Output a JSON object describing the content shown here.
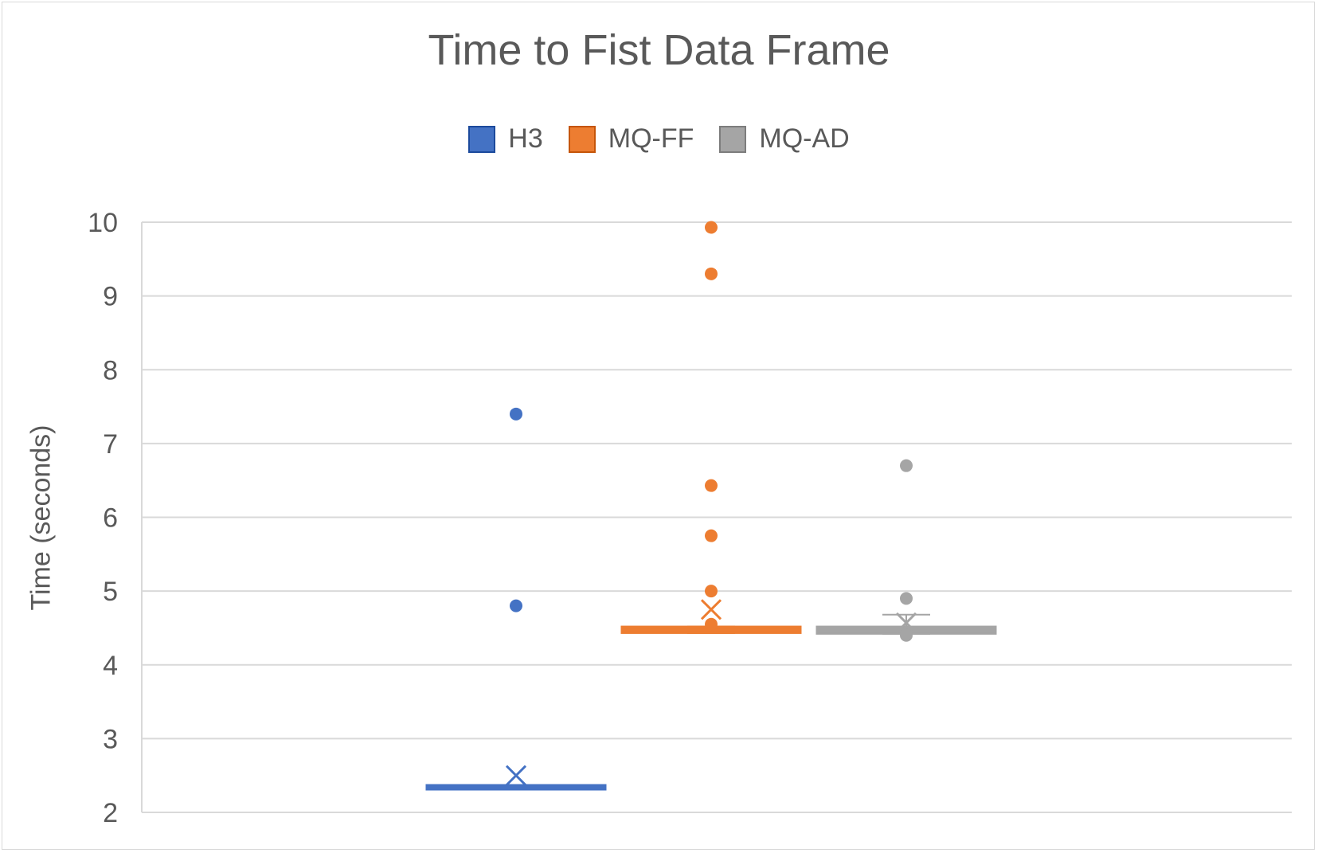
{
  "chart_data": {
    "type": "box",
    "title": "Time to Fist Data Frame",
    "ylabel": "Time (seconds)",
    "xlabel": "",
    "ylim": [
      2,
      10
    ],
    "yticks": [
      "2",
      "3",
      "4",
      "5",
      "6",
      "7",
      "8",
      "9",
      "10"
    ],
    "grid": true,
    "legend_position": "top",
    "series": [
      {
        "name": "H3",
        "color": "#4472c4",
        "min": 2.33,
        "q1": 2.33,
        "median": 2.35,
        "q3": 2.35,
        "max": 2.35,
        "mean": 2.5,
        "outliers": [
          4.8,
          7.4
        ]
      },
      {
        "name": "MQ-FF",
        "color": "#ed7d31",
        "min": 4.43,
        "q1": 4.43,
        "median": 4.47,
        "q3": 4.52,
        "max": 4.52,
        "mean": 4.75,
        "outliers": [
          4.55,
          5.0,
          5.75,
          6.43,
          9.3,
          9.93
        ]
      },
      {
        "name": "MQ-AD",
        "color": "#a5a5a5",
        "min": 4.42,
        "q1": 4.42,
        "median": 4.47,
        "q3": 4.52,
        "max": 4.68,
        "mean": 4.57,
        "outliers": [
          4.4,
          4.9,
          6.7
        ]
      }
    ]
  }
}
